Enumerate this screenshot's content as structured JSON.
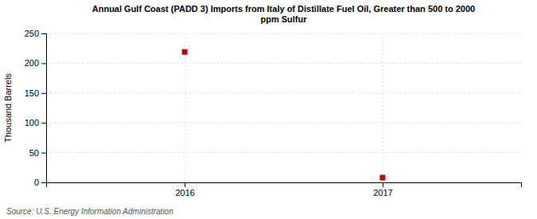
{
  "chart_data": {
    "type": "scatter",
    "title": "Annual Gulf Coast (PADD 3) Imports from Italy of Distillate Fuel Oil, Greater than 500 to 2000\nppm Sulfur",
    "ylabel": "Thousand Barrels",
    "source": "Source: U.S. Energy Information Administration",
    "x": [
      2016,
      2017
    ],
    "values": [
      219,
      8
    ],
    "color": "#cc0000",
    "marker": "square",
    "xlim": [
      2015.3,
      2017.7
    ],
    "ylim": [
      0,
      250
    ],
    "xticks": [
      2016,
      2017
    ],
    "yticks": [
      0,
      50,
      100,
      150,
      200,
      250
    ],
    "grid": true
  }
}
